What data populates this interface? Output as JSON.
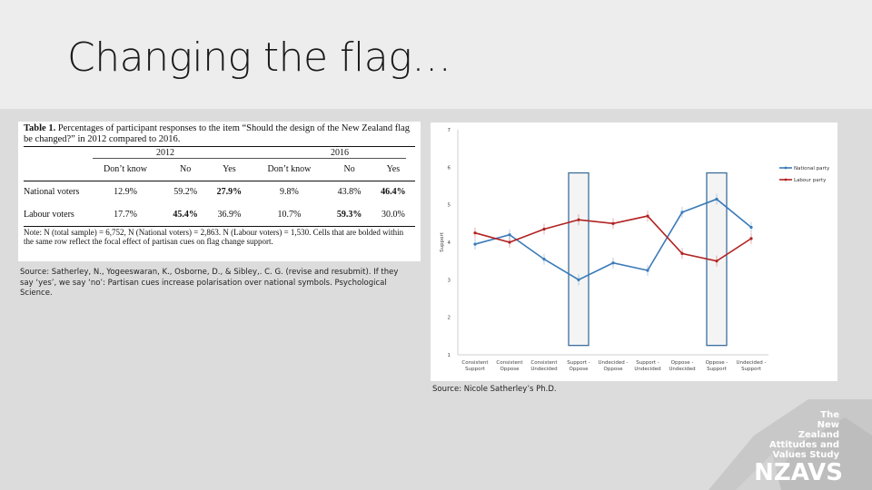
{
  "slide": {
    "title": "Changing the flag…"
  },
  "table": {
    "caption_bold": "Table 1.",
    "caption": " Percentages of participant responses to the item “Should the design of the New Zealand flag be changed?” in 2012 compared to 2016.",
    "years": [
      "2012",
      "2016"
    ],
    "headers": [
      "Don’t know",
      "No",
      "Yes",
      "Don’t know",
      "No",
      "Yes"
    ],
    "rows": [
      {
        "label": "National voters",
        "cells": [
          "12.9%",
          "59.2%",
          "27.9%",
          "9.8%",
          "43.8%",
          "46.4%"
        ],
        "bold": [
          false,
          false,
          true,
          false,
          false,
          true
        ]
      },
      {
        "label": "Labour voters",
        "cells": [
          "17.7%",
          "45.4%",
          "36.9%",
          "10.7%",
          "59.3%",
          "30.0%"
        ],
        "bold": [
          false,
          true,
          false,
          false,
          true,
          false
        ]
      }
    ],
    "note": "Note: N (total sample) = 6,752, N (National voters) = 2,863. N (Labour voters) = 1,530. Cells that are bolded within the same row reflect the focal effect of partisan cues on flag change support."
  },
  "source_left": "Source: Satherley, N., Yogeeswaran, K., Osborne, D., & Sibley,. C. G. (revise and resubmit). If they say ‘yes’, we say ‘no’: Partisan cues increase polarisation over national symbols. Psychological Science.",
  "source_right": "Source: Nicole Satherley’s Ph.D.",
  "brand": {
    "lines": [
      "The",
      "New",
      "Zealand",
      "Attitudes",
      "and",
      "Values Study"
    ],
    "logo": "NZAVS"
  },
  "chart_data": {
    "type": "line",
    "categories": [
      "Consistent Support",
      "Consistent Oppose",
      "Consistent Undecided",
      "Support - Oppose",
      "Undecided - Oppose",
      "Support - Undecided",
      "Oppose - Undecided",
      "Oppose - Support",
      "Undecided - Support"
    ],
    "ylabel": "Support",
    "ylim": [
      1,
      7
    ],
    "yticks": [
      1,
      2,
      3,
      4,
      5,
      6,
      7
    ],
    "highlight_categories": [
      "Support - Oppose",
      "Oppose - Support"
    ],
    "legend_position": "top-right",
    "series": [
      {
        "name": "National party",
        "color": "#3a7ab8",
        "values": [
          3.95,
          4.2,
          3.55,
          3.0,
          3.45,
          3.25,
          4.8,
          5.15,
          4.4
        ]
      },
      {
        "name": "Labour party",
        "color": "#b22222",
        "values": [
          4.25,
          4.0,
          4.35,
          4.6,
          4.5,
          4.7,
          3.7,
          3.5,
          4.1
        ]
      }
    ]
  }
}
